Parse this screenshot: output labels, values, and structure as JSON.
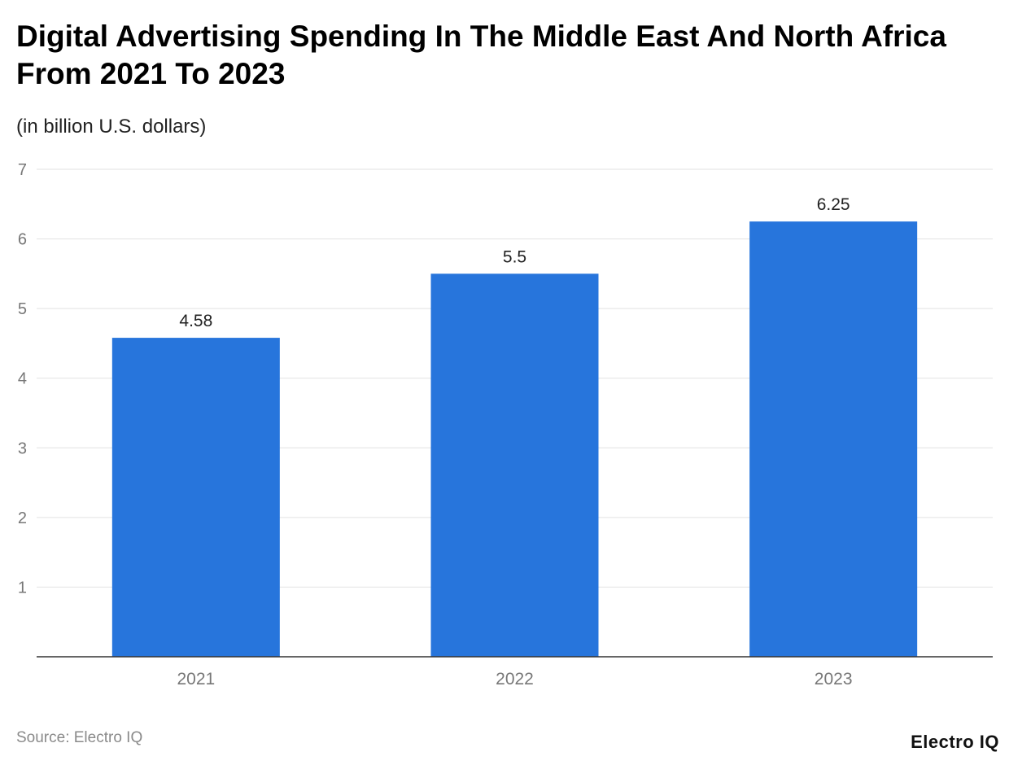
{
  "chart_data": {
    "type": "bar",
    "title": "Digital Advertising Spending In The Middle East And North Africa From 2021 To 2023",
    "subtitle": "(in billion U.S. dollars)",
    "categories": [
      "2021",
      "2022",
      "2023"
    ],
    "values": [
      4.58,
      5.5,
      6.25
    ],
    "data_labels": [
      "4.58",
      "5.5",
      "6.25"
    ],
    "ylim": [
      0,
      7
    ],
    "yticks": [
      1,
      2,
      3,
      4,
      5,
      6,
      7
    ],
    "grid": true,
    "xlabel": "",
    "ylabel": "",
    "colors": {
      "bar": "#2775dc",
      "grid": "#e2e2e2",
      "axis": "#333333",
      "tick_label": "#777777"
    }
  },
  "source": "Source: Electro IQ",
  "logo": "Electro IQ"
}
